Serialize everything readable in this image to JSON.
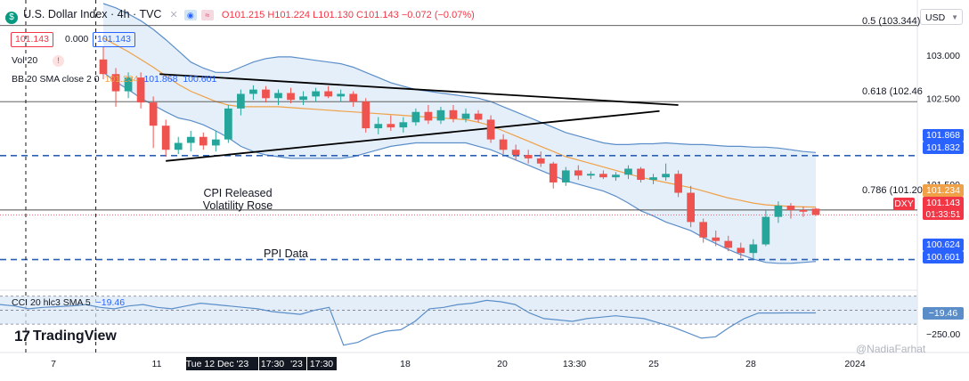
{
  "header": {
    "symbol_title": "U.S. Dollar Index · 4h · TVC",
    "ohlc": {
      "o": "O101.215",
      "h": "H101.224",
      "l": "L101.130",
      "c": "C101.143",
      "chg": "−0.072 (−0.07%)"
    },
    "bid": "101.143",
    "spread": "0.000",
    "ask": "101.143",
    "vol_label": "Vol 20",
    "bb_label": "BB 20 SMA close 2 0",
    "bb_values": {
      "basis": "101.234",
      "upper": "101.868",
      "lower": "100.601"
    },
    "currency": "USD"
  },
  "colors": {
    "up": "#26a69a",
    "down": "#ef5350",
    "bb_line": "#5b8ec9",
    "bb_fill": "#dbe9f7",
    "basis": "#f0a047",
    "dashed": "#2e5fb0",
    "trend": "#000000",
    "cci": "#5b8ec9"
  },
  "chart_data": {
    "type": "candlestick",
    "x_ticks": [
      "7",
      "11",
      "Tue 12 Dec '23",
      "17:30",
      "'23",
      "17:30",
      "18",
      "20",
      "13:30",
      "25",
      "28",
      "2024"
    ],
    "y_ticks": [
      103.0,
      102.5,
      101.5
    ],
    "ylim": [
      100.35,
      103.6
    ],
    "candles": [
      {
        "o": 102.95,
        "h": 103.1,
        "l": 102.72,
        "c": 102.78
      },
      {
        "o": 102.78,
        "h": 102.85,
        "l": 102.4,
        "c": 102.58
      },
      {
        "o": 102.58,
        "h": 102.8,
        "l": 102.5,
        "c": 102.74
      },
      {
        "o": 102.74,
        "h": 102.8,
        "l": 102.38,
        "c": 102.45
      },
      {
        "o": 102.45,
        "h": 102.52,
        "l": 101.92,
        "c": 102.18
      },
      {
        "o": 102.18,
        "h": 102.25,
        "l": 101.82,
        "c": 101.9
      },
      {
        "o": 101.9,
        "h": 102.05,
        "l": 101.85,
        "c": 101.98
      },
      {
        "o": 101.98,
        "h": 102.12,
        "l": 101.88,
        "c": 102.05
      },
      {
        "o": 102.05,
        "h": 102.1,
        "l": 101.9,
        "c": 101.95
      },
      {
        "o": 101.95,
        "h": 102.12,
        "l": 101.88,
        "c": 102.02
      },
      {
        "o": 102.02,
        "h": 102.42,
        "l": 101.98,
        "c": 102.38
      },
      {
        "o": 102.38,
        "h": 102.6,
        "l": 102.3,
        "c": 102.55
      },
      {
        "o": 102.55,
        "h": 102.65,
        "l": 102.48,
        "c": 102.6
      },
      {
        "o": 102.6,
        "h": 102.64,
        "l": 102.45,
        "c": 102.5
      },
      {
        "o": 102.5,
        "h": 102.6,
        "l": 102.42,
        "c": 102.56
      },
      {
        "o": 102.56,
        "h": 102.62,
        "l": 102.44,
        "c": 102.48
      },
      {
        "o": 102.48,
        "h": 102.58,
        "l": 102.42,
        "c": 102.52
      },
      {
        "o": 102.52,
        "h": 102.62,
        "l": 102.46,
        "c": 102.58
      },
      {
        "o": 102.58,
        "h": 102.64,
        "l": 102.5,
        "c": 102.52
      },
      {
        "o": 102.52,
        "h": 102.6,
        "l": 102.46,
        "c": 102.55
      },
      {
        "o": 102.55,
        "h": 102.58,
        "l": 102.4,
        "c": 102.46
      },
      {
        "o": 102.46,
        "h": 102.5,
        "l": 102.1,
        "c": 102.15
      },
      {
        "o": 102.15,
        "h": 102.28,
        "l": 102.08,
        "c": 102.2
      },
      {
        "o": 102.2,
        "h": 102.3,
        "l": 102.12,
        "c": 102.16
      },
      {
        "o": 102.16,
        "h": 102.28,
        "l": 102.1,
        "c": 102.22
      },
      {
        "o": 102.22,
        "h": 102.38,
        "l": 102.18,
        "c": 102.34
      },
      {
        "o": 102.34,
        "h": 102.42,
        "l": 102.2,
        "c": 102.24
      },
      {
        "o": 102.24,
        "h": 102.4,
        "l": 102.2,
        "c": 102.36
      },
      {
        "o": 102.36,
        "h": 102.42,
        "l": 102.22,
        "c": 102.26
      },
      {
        "o": 102.26,
        "h": 102.38,
        "l": 102.22,
        "c": 102.32
      },
      {
        "o": 102.32,
        "h": 102.36,
        "l": 102.22,
        "c": 102.25
      },
      {
        "o": 102.25,
        "h": 102.3,
        "l": 101.98,
        "c": 102.02
      },
      {
        "o": 102.02,
        "h": 102.08,
        "l": 101.85,
        "c": 101.9
      },
      {
        "o": 101.9,
        "h": 101.96,
        "l": 101.78,
        "c": 101.84
      },
      {
        "o": 101.84,
        "h": 101.9,
        "l": 101.74,
        "c": 101.8
      },
      {
        "o": 101.8,
        "h": 101.88,
        "l": 101.7,
        "c": 101.74
      },
      {
        "o": 101.74,
        "h": 101.76,
        "l": 101.45,
        "c": 101.52
      },
      {
        "o": 101.52,
        "h": 101.7,
        "l": 101.48,
        "c": 101.66
      },
      {
        "o": 101.66,
        "h": 101.72,
        "l": 101.55,
        "c": 101.6
      },
      {
        "o": 101.6,
        "h": 101.65,
        "l": 101.56,
        "c": 101.62
      },
      {
        "o": 101.62,
        "h": 101.66,
        "l": 101.56,
        "c": 101.58
      },
      {
        "o": 101.58,
        "h": 101.64,
        "l": 101.54,
        "c": 101.61
      },
      {
        "o": 101.61,
        "h": 101.72,
        "l": 101.56,
        "c": 101.68
      },
      {
        "o": 101.68,
        "h": 101.7,
        "l": 101.52,
        "c": 101.55
      },
      {
        "o": 101.55,
        "h": 101.62,
        "l": 101.5,
        "c": 101.58
      },
      {
        "o": 101.58,
        "h": 101.74,
        "l": 101.54,
        "c": 101.62
      },
      {
        "o": 101.62,
        "h": 101.66,
        "l": 101.35,
        "c": 101.4
      },
      {
        "o": 101.4,
        "h": 101.48,
        "l": 101.0,
        "c": 101.06
      },
      {
        "o": 101.06,
        "h": 101.1,
        "l": 100.82,
        "c": 100.88
      },
      {
        "o": 100.88,
        "h": 100.96,
        "l": 100.78,
        "c": 100.84
      },
      {
        "o": 100.84,
        "h": 100.9,
        "l": 100.72,
        "c": 100.76
      },
      {
        "o": 100.76,
        "h": 100.82,
        "l": 100.64,
        "c": 100.7
      },
      {
        "o": 100.7,
        "h": 100.86,
        "l": 100.62,
        "c": 100.8
      },
      {
        "o": 100.8,
        "h": 101.2,
        "l": 100.78,
        "c": 101.12
      },
      {
        "o": 101.12,
        "h": 101.3,
        "l": 101.05,
        "c": 101.25
      },
      {
        "o": 101.25,
        "h": 101.28,
        "l": 101.1,
        "c": 101.2
      },
      {
        "o": 101.2,
        "h": 101.24,
        "l": 101.12,
        "c": 101.18
      },
      {
        "o": 101.215,
        "h": 101.224,
        "l": 101.13,
        "c": 101.143
      }
    ],
    "bb_upper": [
      103.6,
      103.55,
      103.48,
      103.4,
      103.3,
      103.18,
      103.05,
      102.92,
      102.85,
      102.8,
      102.8,
      102.86,
      102.92,
      102.96,
      102.98,
      102.98,
      102.96,
      102.94,
      102.92,
      102.9,
      102.86,
      102.8,
      102.74,
      102.68,
      102.64,
      102.6,
      102.58,
      102.56,
      102.54,
      102.52,
      102.5,
      102.46,
      102.4,
      102.34,
      102.28,
      102.22,
      102.16,
      102.1,
      102.06,
      102.02,
      101.98,
      101.96,
      101.96,
      101.97,
      101.97,
      101.98,
      101.97,
      101.96,
      101.96,
      101.95,
      101.94,
      101.94,
      101.93,
      101.93,
      101.92,
      101.9,
      101.88,
      101.868
    ],
    "bb_basis": [
      103.2,
      103.12,
      103.04,
      102.95,
      102.86,
      102.76,
      102.66,
      102.58,
      102.52,
      102.46,
      102.42,
      102.4,
      102.4,
      102.4,
      102.4,
      102.39,
      102.38,
      102.37,
      102.36,
      102.35,
      102.34,
      102.33,
      102.32,
      102.31,
      102.3,
      102.29,
      102.28,
      102.27,
      102.26,
      102.25,
      102.22,
      102.18,
      102.12,
      102.06,
      102.0,
      101.94,
      101.88,
      101.82,
      101.78,
      101.74,
      101.7,
      101.66,
      101.62,
      101.58,
      101.55,
      101.52,
      101.49,
      101.46,
      101.42,
      101.38,
      101.34,
      101.31,
      101.28,
      101.26,
      101.25,
      101.24,
      101.236,
      101.234
    ],
    "bb_lower": [
      102.8,
      102.69,
      102.6,
      102.5,
      102.42,
      102.34,
      102.27,
      102.24,
      102.19,
      102.12,
      102.04,
      101.94,
      101.88,
      101.84,
      101.82,
      101.8,
      101.8,
      101.8,
      101.8,
      101.8,
      101.82,
      101.86,
      101.9,
      101.94,
      101.96,
      101.98,
      101.98,
      101.98,
      101.98,
      101.98,
      101.94,
      101.9,
      101.84,
      101.78,
      101.72,
      101.66,
      101.6,
      101.54,
      101.5,
      101.46,
      101.42,
      101.36,
      101.28,
      101.19,
      101.13,
      101.06,
      101.01,
      100.96,
      100.88,
      100.81,
      100.74,
      100.68,
      100.63,
      100.59,
      100.58,
      100.58,
      100.59,
      100.601
    ],
    "levels": [
      {
        "label": "0.5 (103.344)",
        "value": 103.344
      },
      {
        "label": "0.618 (102.46",
        "value": 102.46
      },
      {
        "label": "0.786 (101.20",
        "value": 101.2
      }
    ],
    "dashed_levels": [
      101.832,
      100.624
    ],
    "trendlines": [
      {
        "x0": 4.5,
        "y0": 102.78,
        "x1": 46.0,
        "y1": 102.42
      },
      {
        "x0": 5.0,
        "y0": 101.77,
        "x1": 44.5,
        "y1": 102.35
      }
    ],
    "annotations": [
      "CPI Released",
      "Volatility Rose",
      "PPI Data"
    ],
    "price_tags": {
      "bb_upper": "101.868",
      "dashed_upper": "101.832",
      "basis": "101.234",
      "symbol": "DXY",
      "last": "101.143",
      "countdown": "01:33:51",
      "dashed_lower": "100.624",
      "bb_lower": "100.601"
    },
    "cci": {
      "label": "CCI 20 hlc3 SMA 5",
      "value_text": "−19.46",
      "current": -19.46,
      "ylim": [
        -290,
        130
      ],
      "band": [
        -100,
        100
      ],
      "tick": "−250.00",
      "values": [
        40,
        30,
        10,
        20,
        25,
        30,
        40,
        20,
        10,
        30,
        40,
        20,
        10,
        30,
        50,
        40,
        30,
        20,
        10,
        -10,
        -20,
        -30,
        0,
        20,
        -250,
        -230,
        -180,
        -150,
        -140,
        -80,
        10,
        20,
        40,
        50,
        70,
        60,
        40,
        -20,
        -60,
        -70,
        -80,
        -60,
        -50,
        -40,
        -50,
        -60,
        -90,
        -120,
        -160,
        -200,
        -190,
        -120,
        -60,
        -20,
        -20,
        -19.46,
        -19.46,
        -19.46
      ]
    }
  },
  "watermark": {
    "logo_text": "TradingView",
    "handle": "@NadiaFarhat"
  }
}
